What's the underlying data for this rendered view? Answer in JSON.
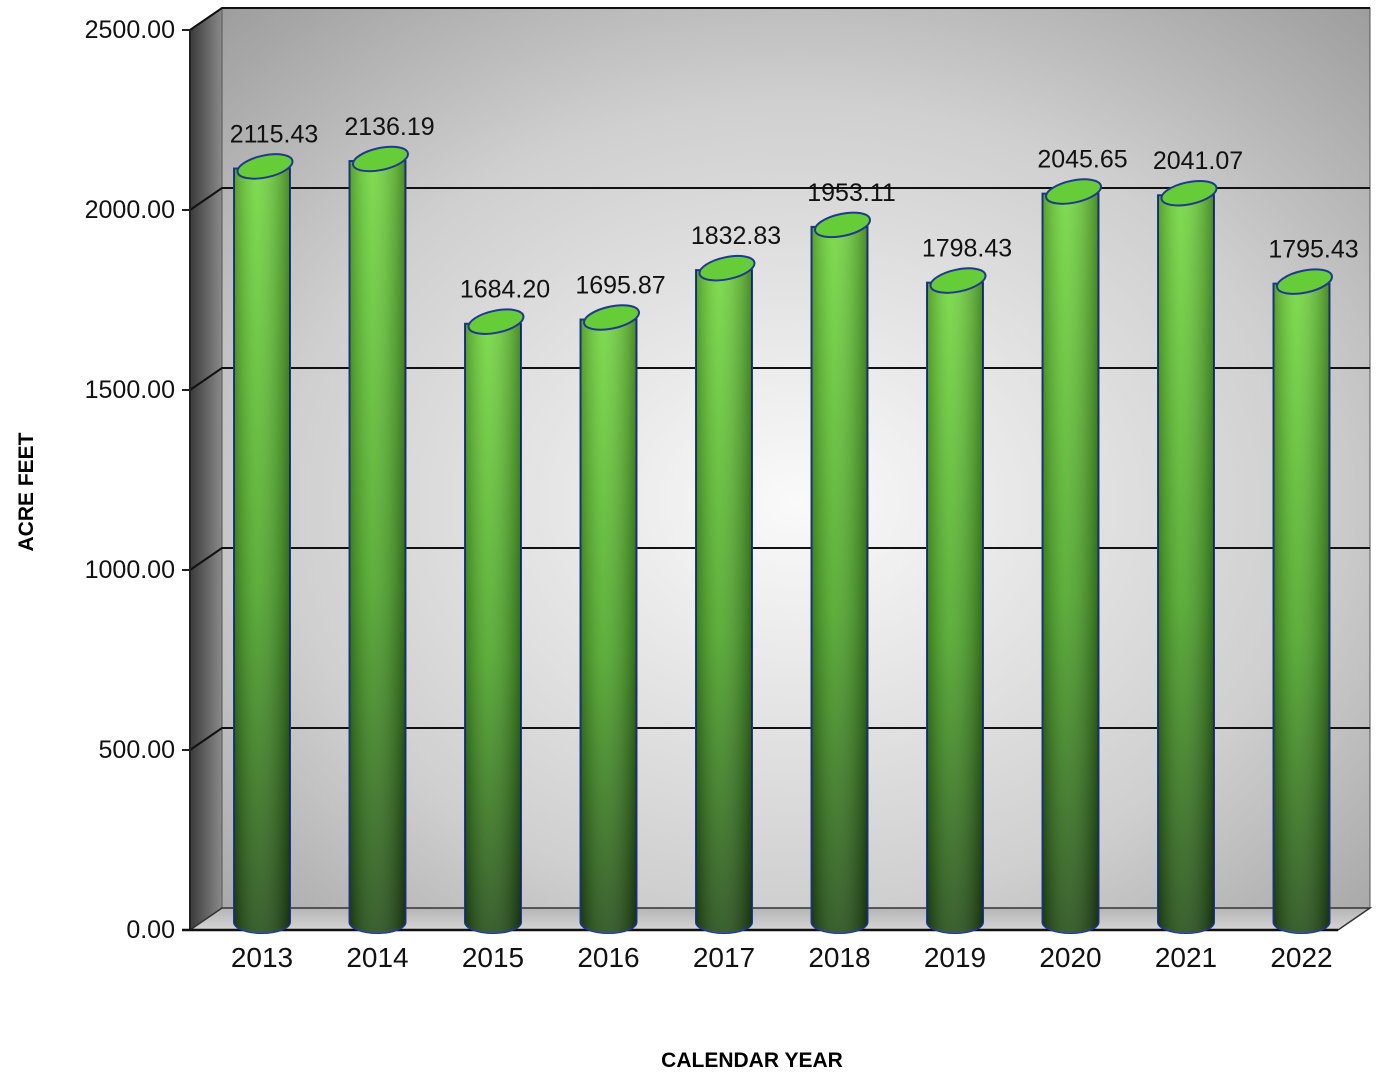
{
  "chart_data": {
    "type": "bar",
    "style": "3d-cylinder",
    "xlabel": "CALENDAR YEAR",
    "ylabel": "ACRE FEET",
    "categories": [
      "2013",
      "2014",
      "2015",
      "2016",
      "2017",
      "2018",
      "2019",
      "2020",
      "2021",
      "2022"
    ],
    "values": [
      2115.43,
      2136.19,
      1684.2,
      1695.87,
      1832.83,
      1953.11,
      1798.43,
      2045.65,
      2041.07,
      1795.43
    ],
    "value_labels": [
      "2115.43",
      "2136.19",
      "1684.20",
      "1695.87",
      "1832.83",
      "1953.11",
      "1798.43",
      "2045.65",
      "2041.07",
      "1795.43"
    ],
    "yticks": [
      "0.00",
      "500.00",
      "1000.00",
      "1500.00",
      "2000.00",
      "2500.00"
    ],
    "ylim": [
      0,
      2500
    ],
    "grid": true,
    "legend": "none",
    "colors": {
      "bar_fill": "#5cbf2a",
      "bar_outline": "#1f3a8c",
      "gridline": "#111111",
      "wall_light": "#eeeeee",
      "wall_dark": "#9a9a9a"
    }
  }
}
